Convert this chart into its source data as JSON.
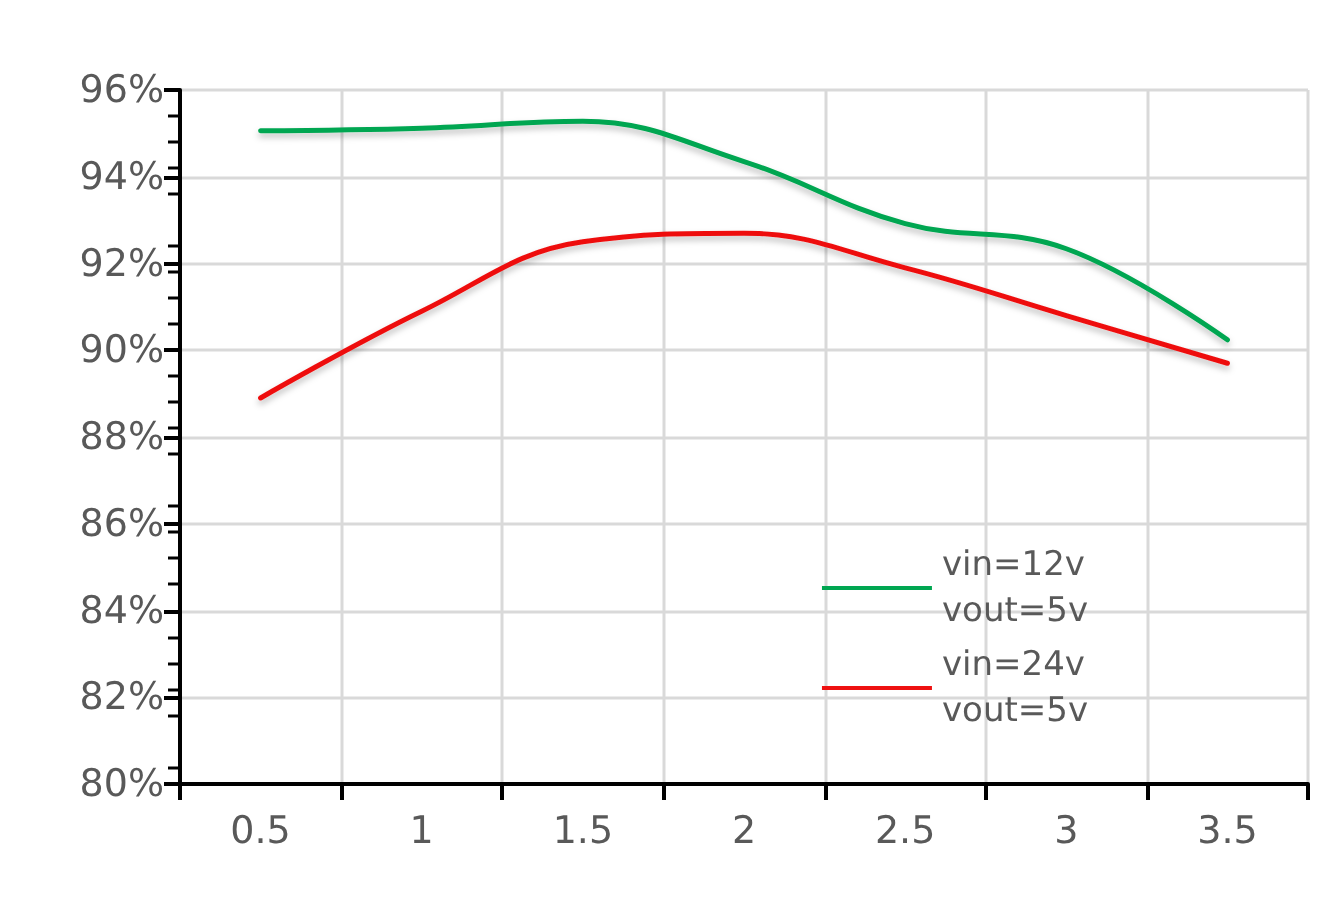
{
  "chart_data": {
    "type": "line",
    "categories": [
      "0.5",
      "1",
      "1.5",
      "2",
      "2.5",
      "3",
      "3.5"
    ],
    "series": [
      {
        "name": "vin=12v\nvout=5v",
        "color": "#00a651",
        "values": [
          95.06,
          95.12,
          95.28,
          94.35,
          92.92,
          92.34,
          90.24
        ]
      },
      {
        "name": "vin=24v\nvout=5v",
        "color": "#ee1111",
        "values": [
          88.9,
          90.9,
          92.5,
          92.7,
          91.9,
          90.8,
          89.7
        ]
      }
    ],
    "ylim": [
      80,
      96
    ],
    "yticks": [
      {
        "value": 80,
        "label": "80%"
      },
      {
        "value": 82,
        "label": "82%"
      },
      {
        "value": 84,
        "label": "84%"
      },
      {
        "value": 86,
        "label": "86%"
      },
      {
        "value": 88,
        "label": "88%"
      },
      {
        "value": 90,
        "label": "90%"
      },
      {
        "value": 92,
        "label": "92%"
      },
      {
        "value": 94,
        "label": "94%"
      },
      {
        "value": 96,
        "label": "96%"
      }
    ],
    "grid": true,
    "legend": "bottom right",
    "marker": "none",
    "line_style": "solid"
  }
}
